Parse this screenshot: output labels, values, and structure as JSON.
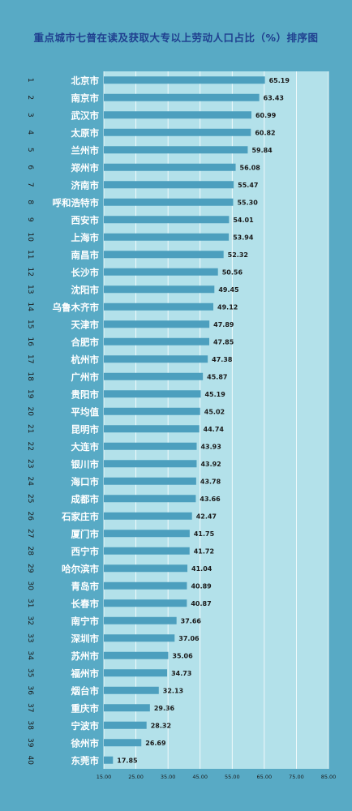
{
  "chart_data": {
    "type": "bar",
    "orientation": "horizontal",
    "title": "重点城市七普在读及获取大专以上劳动人口占比（%）排序图",
    "xlabel": "",
    "ylabel": "",
    "xlim": [
      15,
      85
    ],
    "xticks": [
      "15.00",
      "25.00",
      "35.00",
      "45.00",
      "55.00",
      "65.00",
      "75.00",
      "85.00"
    ],
    "grid": true,
    "legend": "none",
    "colors": {
      "background": "#58aac5",
      "plot_area": "#b3e1ea",
      "bar": "#4c9fbe",
      "grid": "#ffffff",
      "city_text": "#ffffff",
      "value_text": "#1a1a1a",
      "rank_text": "#1a1a1a",
      "title_text": "#1f3f8f"
    },
    "ranks": [
      "1",
      "2",
      "3",
      "4",
      "5",
      "6",
      "7",
      "8",
      "9",
      "10",
      "11",
      "12",
      "13",
      "14",
      "15",
      "16",
      "17",
      "18",
      "19",
      "20",
      "21",
      "22",
      "23",
      "24",
      "25",
      "26",
      "27",
      "28",
      "29",
      "30",
      "31",
      "32",
      "33",
      "34",
      "35",
      "36",
      "37",
      "38",
      "39",
      "40"
    ],
    "categories": [
      "北京市",
      "南京市",
      "武汉市",
      "太原市",
      "兰州市",
      "郑州市",
      "济南市",
      "呼和浩特市",
      "西安市",
      "上海市",
      "南昌市",
      "长沙市",
      "沈阳市",
      "乌鲁木齐市",
      "天津市",
      "合肥市",
      "杭州市",
      "广州市",
      "贵阳市",
      "平均值",
      "昆明市",
      "大连市",
      "银川市",
      "海口市",
      "成都市",
      "石家庄市",
      "厦门市",
      "西宁市",
      "哈尔滨市",
      "青岛市",
      "长春市",
      "南宁市",
      "深圳市",
      "苏州市",
      "福州市",
      "烟台市",
      "重庆市",
      "宁波市",
      "徐州市",
      "东莞市"
    ],
    "values": [
      65.19,
      63.43,
      60.99,
      60.82,
      59.84,
      56.08,
      55.47,
      55.3,
      54.01,
      53.94,
      52.32,
      50.56,
      49.45,
      49.12,
      47.89,
      47.85,
      47.38,
      45.87,
      45.19,
      45.02,
      44.74,
      43.93,
      43.92,
      43.78,
      43.66,
      42.47,
      41.75,
      41.72,
      41.04,
      40.89,
      40.87,
      37.66,
      37.06,
      35.06,
      34.73,
      32.13,
      29.36,
      28.32,
      26.69,
      17.85
    ],
    "labels": [
      "65.19",
      "63.43",
      "60.99",
      "60.82",
      "59.84",
      "56.08",
      "55.47",
      "55.30",
      "54.01",
      "53.94",
      "52.32",
      "50.56",
      "49.45",
      "49.12",
      "47.89",
      "47.85",
      "47.38",
      "45.87",
      "45.19",
      "45.02",
      "44.74",
      "43.93",
      "43.92",
      "43.78",
      "43.66",
      "42.47",
      "41.75",
      "41.72",
      "41.04",
      "40.89",
      "40.87",
      "37.66",
      "37.06",
      "35.06",
      "34.73",
      "32.13",
      "29.36",
      "28.32",
      "26.69",
      "17.85"
    ]
  }
}
